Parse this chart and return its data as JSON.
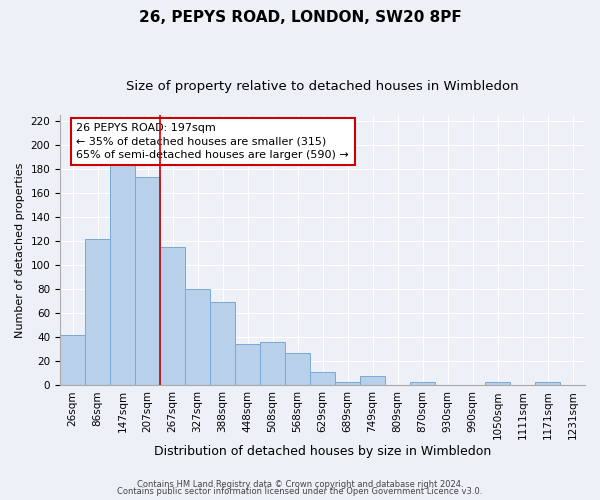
{
  "title": "26, PEPYS ROAD, LONDON, SW20 8PF",
  "subtitle": "Size of property relative to detached houses in Wimbledon",
  "xlabel": "Distribution of detached houses by size in Wimbledon",
  "ylabel": "Number of detached properties",
  "bar_labels": [
    "26sqm",
    "86sqm",
    "147sqm",
    "207sqm",
    "267sqm",
    "327sqm",
    "388sqm",
    "448sqm",
    "508sqm",
    "568sqm",
    "629sqm",
    "689sqm",
    "749sqm",
    "809sqm",
    "870sqm",
    "930sqm",
    "990sqm",
    "1050sqm",
    "1111sqm",
    "1171sqm",
    "1231sqm"
  ],
  "bar_values": [
    42,
    122,
    184,
    173,
    115,
    80,
    69,
    34,
    36,
    27,
    11,
    3,
    8,
    0,
    3,
    0,
    0,
    3,
    0,
    3,
    0
  ],
  "bar_color": "#b8d0ea",
  "bar_edge_color": "#7aa8d4",
  "vline_color": "#cc0000",
  "annotation_text_line1": "26 PEPYS ROAD: 197sqm",
  "annotation_text_line2": "← 35% of detached houses are smaller (315)",
  "annotation_text_line3": "65% of semi-detached houses are larger (590) →",
  "title_fontsize": 11,
  "subtitle_fontsize": 9.5,
  "xlabel_fontsize": 9,
  "ylabel_fontsize": 8,
  "tick_fontsize": 7.5,
  "annotation_fontsize": 8,
  "ylim": [
    0,
    225
  ],
  "yticks": [
    0,
    20,
    40,
    60,
    80,
    100,
    120,
    140,
    160,
    180,
    200,
    220
  ],
  "footer_line1": "Contains HM Land Registry data © Crown copyright and database right 2024.",
  "footer_line2": "Contains public sector information licensed under the Open Government Licence v3.0.",
  "background_color": "#edf1f7",
  "grid_color": "#ffffff"
}
